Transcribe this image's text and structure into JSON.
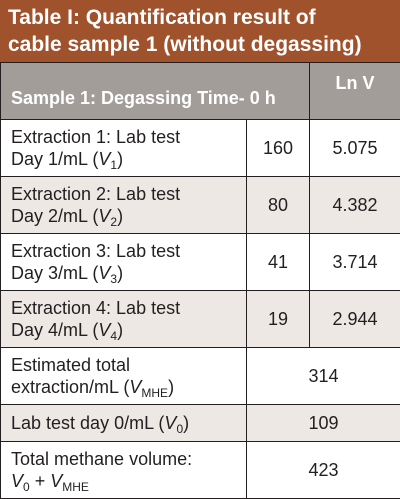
{
  "title": {
    "line1": "Table I: Quantification result of",
    "line2": "cable sample 1 (without degassing)"
  },
  "header": {
    "col1": "Sample 1: Degassing Time- 0 h",
    "col3": "Ln V"
  },
  "rows": [
    {
      "line1": "Extraction 1: Lab test",
      "line2": "Day 1/mL (",
      "var": "V",
      "sub": "1",
      "close": ")",
      "value": "160",
      "ln": "5.075"
    },
    {
      "line1": "Extraction 2: Lab test",
      "line2": "Day 2/mL (",
      "var": "V",
      "sub": "2",
      "close": ")",
      "value": "80",
      "ln": "4.382"
    },
    {
      "line1": "Extraction 3: Lab test",
      "line2": "Day 3/mL (",
      "var": "V",
      "sub": "3",
      "close": ")",
      "value": "41",
      "ln": "3.714"
    },
    {
      "line1": "Extraction 4: Lab test",
      "line2": "Day 4/mL (",
      "var": "V",
      "sub": "4",
      "close": ")",
      "value": "19",
      "ln": "2.944"
    }
  ],
  "summary": [
    {
      "line1": "Estimated total",
      "line2": "extraction/mL (",
      "var": "V",
      "sub": "MHE",
      "close": ")",
      "value": "314"
    },
    {
      "line1": "Lab test day 0/mL (",
      "var": "V",
      "sub": "0",
      "close": ")",
      "value": "109"
    },
    {
      "line1": "Total methane volume:",
      "line2a_var": "V",
      "line2a_sub": "0",
      "line2_mid": " + ",
      "line2b_var": "V",
      "line2b_sub": "MHE",
      "value": "423"
    }
  ],
  "colors": {
    "title_bg": "#a0522d",
    "header_bg": "#a39d99",
    "shade": "#ede8e4"
  }
}
